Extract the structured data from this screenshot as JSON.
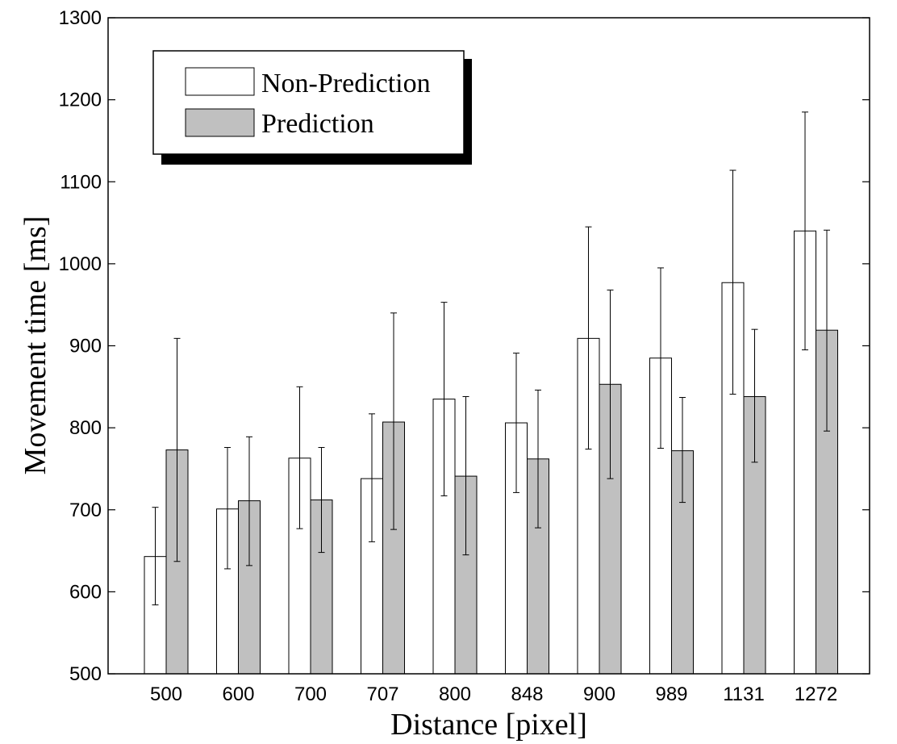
{
  "chart_data": {
    "type": "bar",
    "xlabel": "Distance [pixel]",
    "ylabel": "Movement time [ms]",
    "ylim": [
      500,
      1300
    ],
    "yticks": [
      500,
      600,
      700,
      800,
      900,
      1000,
      1100,
      1200,
      1300
    ],
    "categories": [
      "500",
      "600",
      "700",
      "707",
      "800",
      "848",
      "900",
      "989",
      "1131",
      "1272"
    ],
    "series": [
      {
        "name": "Non-Prediction",
        "color": "#ffffff",
        "values": [
          643,
          701,
          763,
          738,
          835,
          806,
          909,
          885,
          977,
          1040
        ],
        "error_low": [
          584,
          628,
          677,
          661,
          717,
          721,
          774,
          775,
          841,
          895
        ],
        "error_high": [
          703,
          776,
          850,
          817,
          953,
          891,
          1045,
          995,
          1114,
          1185
        ]
      },
      {
        "name": "Prediction",
        "color": "#c0c0c0",
        "values": [
          773,
          711,
          712,
          807,
          741,
          762,
          853,
          772,
          838,
          919
        ],
        "error_low": [
          637,
          632,
          648,
          676,
          645,
          678,
          738,
          709,
          758,
          796
        ],
        "error_high": [
          909,
          789,
          776,
          940,
          838,
          846,
          968,
          837,
          920,
          1041
        ]
      }
    ],
    "grid": false,
    "legend_position": "top-left"
  }
}
